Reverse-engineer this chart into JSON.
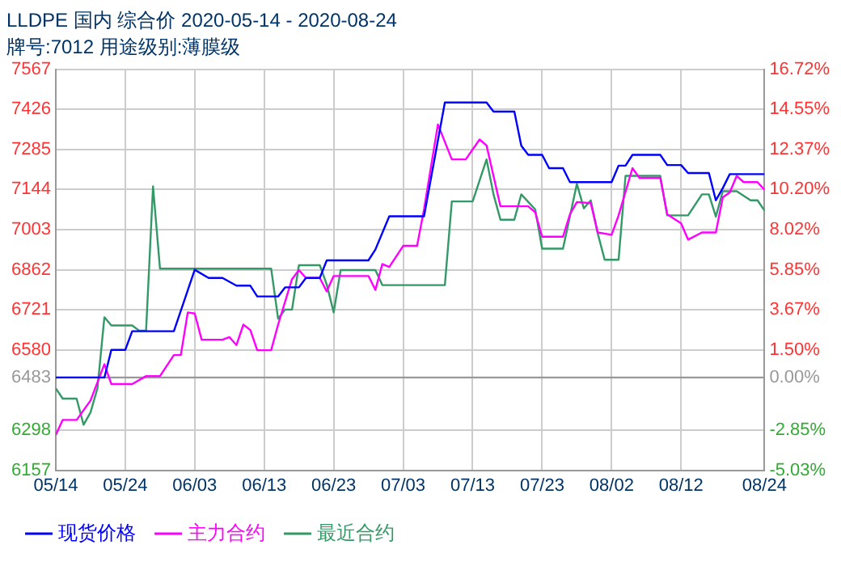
{
  "chart_data": {
    "type": "line",
    "title": "LLDPE 国内 综合价 2020-05-14 - 2020-08-24",
    "subtitle": "牌号:7012 用途级别:薄膜级",
    "series": [
      {
        "name": "现货价格",
        "color": "#0000ff",
        "x": [
          "2020-05-14",
          "2020-05-21",
          "2020-05-22",
          "2020-05-24",
          "2020-05-25",
          "2020-05-31",
          "2020-06-03",
          "2020-06-05",
          "2020-06-07",
          "2020-06-09",
          "2020-06-11",
          "2020-06-12",
          "2020-06-15",
          "2020-06-16",
          "2020-06-18",
          "2020-06-19",
          "2020-06-21",
          "2020-06-22",
          "2020-06-28",
          "2020-06-29",
          "2020-07-01",
          "2020-07-05",
          "2020-07-06",
          "2020-07-09",
          "2020-07-15",
          "2020-07-16",
          "2020-07-19",
          "2020-07-20",
          "2020-07-21",
          "2020-07-23",
          "2020-07-24",
          "2020-07-26",
          "2020-07-27",
          "2020-08-02",
          "2020-08-03",
          "2020-08-04",
          "2020-08-05",
          "2020-08-09",
          "2020-08-10",
          "2020-08-12",
          "2020-08-13",
          "2020-08-16",
          "2020-08-17",
          "2020-08-18",
          "2020-08-19",
          "2020-08-24"
        ],
        "values": [
          6483,
          6483,
          6580,
          6580,
          6646,
          6646,
          6862,
          6833,
          6833,
          6806,
          6806,
          6768,
          6768,
          6800,
          6800,
          6833,
          6833,
          6895,
          6895,
          6933,
          7050,
          7050,
          7050,
          7450,
          7450,
          7418,
          7418,
          7298,
          7266,
          7266,
          7219,
          7219,
          7170,
          7170,
          7228,
          7228,
          7266,
          7266,
          7230,
          7230,
          7202,
          7202,
          7106,
          7149,
          7198,
          7198
        ]
      },
      {
        "name": "主力合约",
        "color": "#ff00ff",
        "x": [
          "2020-05-14",
          "2020-05-15",
          "2020-05-17",
          "2020-05-19",
          "2020-05-21",
          "2020-05-22",
          "2020-05-25",
          "2020-05-27",
          "2020-05-29",
          "2020-05-31",
          "2020-06-01",
          "2020-06-02",
          "2020-06-03",
          "2020-06-04",
          "2020-06-07",
          "2020-06-08",
          "2020-06-09",
          "2020-06-10",
          "2020-06-11",
          "2020-06-12",
          "2020-06-14",
          "2020-06-15",
          "2020-06-17",
          "2020-06-18",
          "2020-06-19",
          "2020-06-21",
          "2020-06-22",
          "2020-06-23",
          "2020-06-28",
          "2020-06-29",
          "2020-06-30",
          "2020-07-01",
          "2020-07-03",
          "2020-07-05",
          "2020-07-06",
          "2020-07-08",
          "2020-07-10",
          "2020-07-12",
          "2020-07-14",
          "2020-07-15",
          "2020-07-17",
          "2020-07-21",
          "2020-07-22",
          "2020-07-23",
          "2020-07-26",
          "2020-07-27",
          "2020-07-28",
          "2020-07-30",
          "2020-07-31",
          "2020-08-02",
          "2020-08-03",
          "2020-08-05",
          "2020-08-06",
          "2020-08-09",
          "2020-08-10",
          "2020-08-12",
          "2020-08-13",
          "2020-08-15",
          "2020-08-17",
          "2020-08-18",
          "2020-08-19",
          "2020-08-20",
          "2020-08-21",
          "2020-08-23",
          "2020-08-24"
        ],
        "values": [
          6281,
          6334,
          6334,
          6402,
          6530,
          6460,
          6460,
          6488,
          6488,
          6562,
          6562,
          6712,
          6708,
          6616,
          6616,
          6625,
          6597,
          6669,
          6650,
          6579,
          6579,
          6669,
          6829,
          6861,
          6833,
          6833,
          6786,
          6840,
          6840,
          6791,
          6882,
          6872,
          6946,
          6946,
          7074,
          7373,
          7250,
          7250,
          7320,
          7299,
          7085,
          7085,
          7064,
          6978,
          6978,
          7057,
          7100,
          7096,
          6993,
          6985,
          7053,
          7219,
          7185,
          7185,
          7057,
          7025,
          6968,
          6993,
          6993,
          7117,
          7134,
          7192,
          7170,
          7170,
          7143
        ]
      },
      {
        "name": "最近合约",
        "color": "#339966",
        "x": [
          "2020-05-14",
          "2020-05-15",
          "2020-05-17",
          "2020-05-18",
          "2020-05-19",
          "2020-05-20",
          "2020-05-21",
          "2020-05-22",
          "2020-05-25",
          "2020-05-26",
          "2020-05-27",
          "2020-05-28",
          "2020-05-29",
          "2020-06-14",
          "2020-06-15",
          "2020-06-16",
          "2020-06-17",
          "2020-06-18",
          "2020-06-21",
          "2020-06-22",
          "2020-06-23",
          "2020-06-24",
          "2020-06-29",
          "2020-06-30",
          "2020-07-09",
          "2020-07-10",
          "2020-07-13",
          "2020-07-15",
          "2020-07-16",
          "2020-07-17",
          "2020-07-19",
          "2020-07-20",
          "2020-07-22",
          "2020-07-23",
          "2020-07-26",
          "2020-07-28",
          "2020-07-29",
          "2020-07-30",
          "2020-07-31",
          "2020-08-01",
          "2020-08-03",
          "2020-08-04",
          "2020-08-09",
          "2020-08-10",
          "2020-08-13",
          "2020-08-15",
          "2020-08-16",
          "2020-08-17",
          "2020-08-18",
          "2020-08-20",
          "2020-08-22",
          "2020-08-23",
          "2020-08-24"
        ],
        "values": [
          6445,
          6409,
          6409,
          6317,
          6360,
          6445,
          6695,
          6666,
          6666,
          6648,
          6648,
          7155,
          6866,
          6866,
          6690,
          6722,
          6722,
          6878,
          6878,
          6810,
          6712,
          6861,
          6861,
          6808,
          6808,
          7102,
          7102,
          7250,
          7127,
          7038,
          7038,
          7127,
          7074,
          6936,
          6936,
          7164,
          7078,
          7106,
          6990,
          6897,
          6897,
          7192,
          7192,
          7053,
          7053,
          7127,
          7127,
          7049,
          7138,
          7138,
          7106,
          7106,
          7070
        ]
      }
    ],
    "xlim": [
      "2020-05-14",
      "2020-08-24"
    ],
    "xticks": [
      {
        "value": "2020-05-14",
        "label": "05/14"
      },
      {
        "value": "2020-05-24",
        "label": "05/24"
      },
      {
        "value": "2020-06-03",
        "label": "06/03"
      },
      {
        "value": "2020-06-13",
        "label": "06/13"
      },
      {
        "value": "2020-06-23",
        "label": "06/23"
      },
      {
        "value": "2020-07-03",
        "label": "07/03"
      },
      {
        "value": "2020-07-13",
        "label": "07/13"
      },
      {
        "value": "2020-07-23",
        "label": "07/23"
      },
      {
        "value": "2020-08-02",
        "label": "08/02"
      },
      {
        "value": "2020-08-12",
        "label": "08/12"
      },
      {
        "value": "2020-08-24",
        "label": "08/24"
      }
    ],
    "ylim": [
      6157,
      7567
    ],
    "yticks": [
      6157,
      6298,
      6483,
      6580,
      6721,
      6862,
      7003,
      7144,
      7285,
      7426,
      7567
    ],
    "y2lim": [
      -5.03,
      16.72
    ],
    "y2ticks": [
      {
        "value": -5.03,
        "label": "-5.03%"
      },
      {
        "value": -2.85,
        "label": "-2.85%"
      },
      {
        "value": 0,
        "label": "0.00%"
      },
      {
        "value": 1.5,
        "label": "1.50%"
      },
      {
        "value": 3.67,
        "label": "3.67%"
      },
      {
        "value": 5.85,
        "label": "5.85%"
      },
      {
        "value": 8.02,
        "label": "8.02%"
      },
      {
        "value": 10.2,
        "label": "10.20%"
      },
      {
        "value": 12.37,
        "label": "12.37%"
      },
      {
        "value": 14.55,
        "label": "14.55%"
      },
      {
        "value": 16.72,
        "label": "16.72%"
      }
    ],
    "ref_lines": [
      {
        "axis": "y",
        "value": 6483,
        "color": "#999999"
      }
    ],
    "grid": true,
    "legend": "bottom",
    "line_style": "solid"
  }
}
